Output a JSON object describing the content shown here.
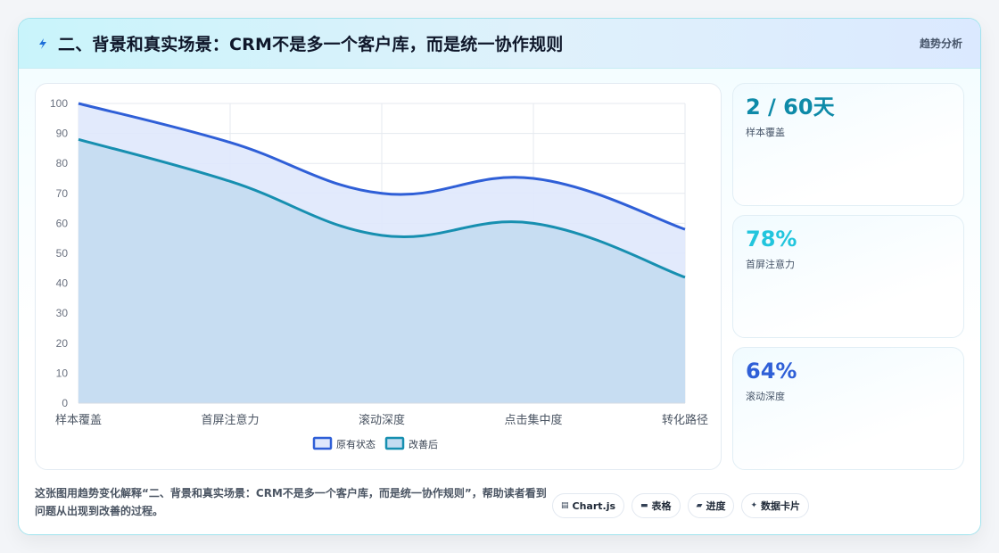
{
  "header": {
    "title": "二、背景和真实场景：CRM不是多一个客户库，而是统一协作规则",
    "tag": "趋势分析"
  },
  "chart_data": {
    "type": "area",
    "categories": [
      "样本覆盖",
      "首屏注意力",
      "滚动深度",
      "点击集中度",
      "转化路径"
    ],
    "series": [
      {
        "name": "原有状态",
        "values": [
          100,
          87,
          70,
          75,
          58
        ],
        "color": "#2f5fd7",
        "fill": "#dfe8fc"
      },
      {
        "name": "改善后",
        "values": [
          88,
          74,
          56,
          60,
          42
        ],
        "color": "#178fb0",
        "fill": "#c4dcf1"
      }
    ],
    "ylim": [
      0,
      100
    ],
    "yticks": [
      0,
      10,
      20,
      30,
      40,
      50,
      60,
      70,
      80,
      90,
      100
    ],
    "grid": true,
    "legend": "bottom"
  },
  "stats": [
    {
      "value": "2 / 60天",
      "label": "样本覆盖",
      "color": "#0e8aa8"
    },
    {
      "value": "78%",
      "label": "首屏注意力",
      "color": "#22c5dd"
    },
    {
      "value": "64%",
      "label": "滚动深度",
      "color": "#2f5fd7"
    }
  ],
  "description": "这张图用趋势变化解释“二、背景和真实场景：CRM不是多一个客户库，而是统一协作规则”，帮助读者看到问题从出现到改善的过程。",
  "pills": [
    {
      "icon": "▤",
      "icon_name": "chart-icon",
      "label": "Chart.js"
    },
    {
      "icon": "▬",
      "icon_name": "table-icon",
      "label": "表格"
    },
    {
      "icon": "▰",
      "icon_name": "progress-icon",
      "label": "进度"
    },
    {
      "icon": "✦",
      "icon_name": "sparkle-icon",
      "label": "数据卡片"
    }
  ]
}
